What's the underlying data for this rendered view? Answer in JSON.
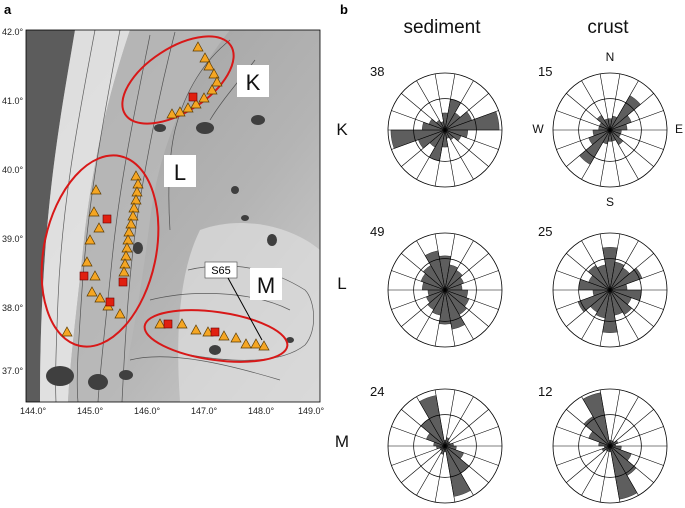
{
  "panel_a": {
    "label": "a",
    "lat_ticks": [
      "42.0°",
      "41.0°",
      "40.0°",
      "39.0°",
      "38.0°",
      "37.0°"
    ],
    "lon_ticks": [
      "144.0°",
      "145.0°",
      "146.0°",
      "147.0°",
      "148.0°",
      "149.0°"
    ],
    "regions": [
      "K",
      "L",
      "M"
    ],
    "station_label": "S65",
    "colors": {
      "ellipse": "#d81818",
      "triangle": "#f5a623",
      "square": "#e02010"
    }
  },
  "panel_b": {
    "label": "b",
    "columns": [
      "sediment",
      "crust"
    ],
    "rows": [
      "K",
      "L",
      "M"
    ],
    "compass": {
      "N": "N",
      "E": "E",
      "S": "S",
      "W": "W"
    },
    "counts": {
      "K": {
        "sediment": "38",
        "crust": "15"
      },
      "L": {
        "sediment": "49",
        "crust": "25"
      },
      "M": {
        "sediment": "24",
        "crust": "12"
      }
    },
    "colors": {
      "petal": "#5e5e5e"
    }
  }
}
